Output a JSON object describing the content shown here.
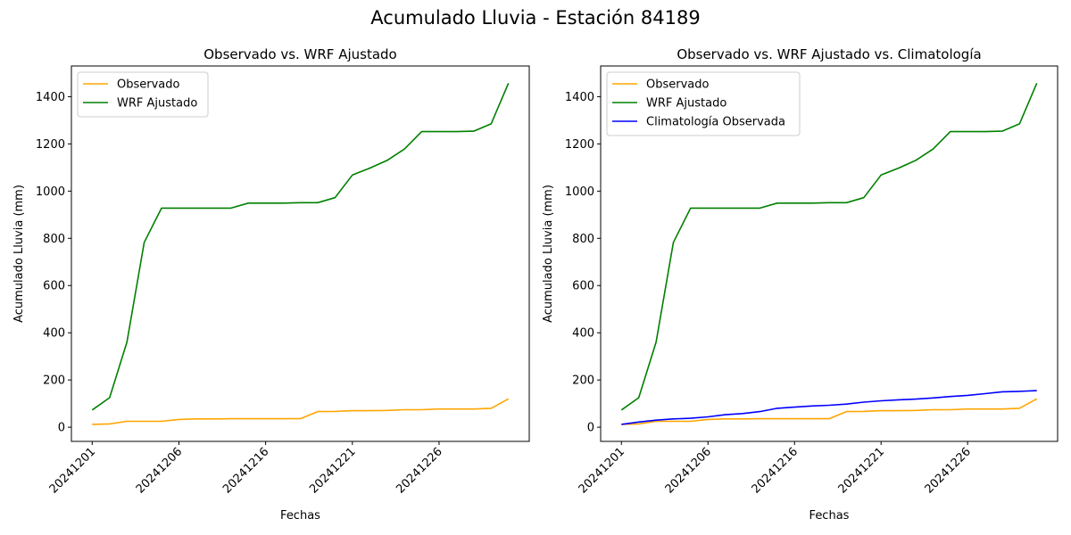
{
  "suptitle": "Acumulado Lluvia - Estación 84189",
  "colors": {
    "observado": "#ffa500",
    "wrf": "#008000",
    "climatologia": "#0000ff"
  },
  "chart_data": [
    {
      "type": "line",
      "title": "Observado vs. WRF Ajustado",
      "xlabel": "Fechas",
      "ylabel": "Acumulado Lluvia (mm)",
      "x_tick_labels": [
        "20241201",
        "20241206",
        "20241216",
        "20241221",
        "20241226"
      ],
      "y_ticks": [
        0,
        200,
        400,
        600,
        800,
        1000,
        1200,
        1400
      ],
      "ylim": [
        -60,
        1530
      ],
      "xlim": [
        -1.2,
        25.2
      ],
      "legend_position": "upper-left",
      "series": [
        {
          "name": "Observado",
          "color": "#ffa500",
          "values": [
            12,
            14,
            25,
            25,
            25,
            33,
            35,
            35,
            36,
            36,
            36,
            36,
            36,
            66,
            67,
            70,
            70,
            71,
            74,
            74,
            77,
            77,
            77,
            80,
            120
          ]
        },
        {
          "name": "WRF Ajustado",
          "color": "#008000",
          "values": [
            73,
            125,
            360,
            783,
            928,
            928,
            928,
            928,
            928,
            949,
            949,
            949,
            951,
            951,
            972,
            1068,
            1097,
            1130,
            1178,
            1252,
            1252,
            1252,
            1254,
            1285,
            1457
          ]
        }
      ]
    },
    {
      "type": "line",
      "title": "Observado vs. WRF Ajustado vs. Climatología",
      "xlabel": "Fechas",
      "ylabel": "Acumulado Lluvia (mm)",
      "x_tick_labels": [
        "20241201",
        "20241206",
        "20241216",
        "20241221",
        "20241226"
      ],
      "y_ticks": [
        0,
        200,
        400,
        600,
        800,
        1000,
        1200,
        1400
      ],
      "ylim": [
        -60,
        1530
      ],
      "xlim": [
        -1.2,
        25.2
      ],
      "legend_position": "upper-left",
      "series": [
        {
          "name": "Observado",
          "color": "#ffa500",
          "values": [
            12,
            14,
            25,
            25,
            25,
            33,
            35,
            35,
            36,
            36,
            36,
            36,
            36,
            66,
            67,
            70,
            70,
            71,
            74,
            74,
            77,
            77,
            77,
            80,
            120
          ]
        },
        {
          "name": "WRF Ajustado",
          "color": "#008000",
          "values": [
            73,
            125,
            360,
            783,
            928,
            928,
            928,
            928,
            928,
            949,
            949,
            949,
            951,
            951,
            972,
            1068,
            1097,
            1130,
            1178,
            1252,
            1252,
            1252,
            1254,
            1285,
            1457
          ]
        },
        {
          "name": "Climatología Observada",
          "color": "#0000ff",
          "values": [
            12,
            22,
            30,
            35,
            38,
            44,
            53,
            58,
            66,
            80,
            85,
            90,
            93,
            98,
            106,
            112,
            116,
            119,
            124,
            130,
            135,
            142,
            150,
            152,
            155
          ]
        }
      ]
    }
  ]
}
